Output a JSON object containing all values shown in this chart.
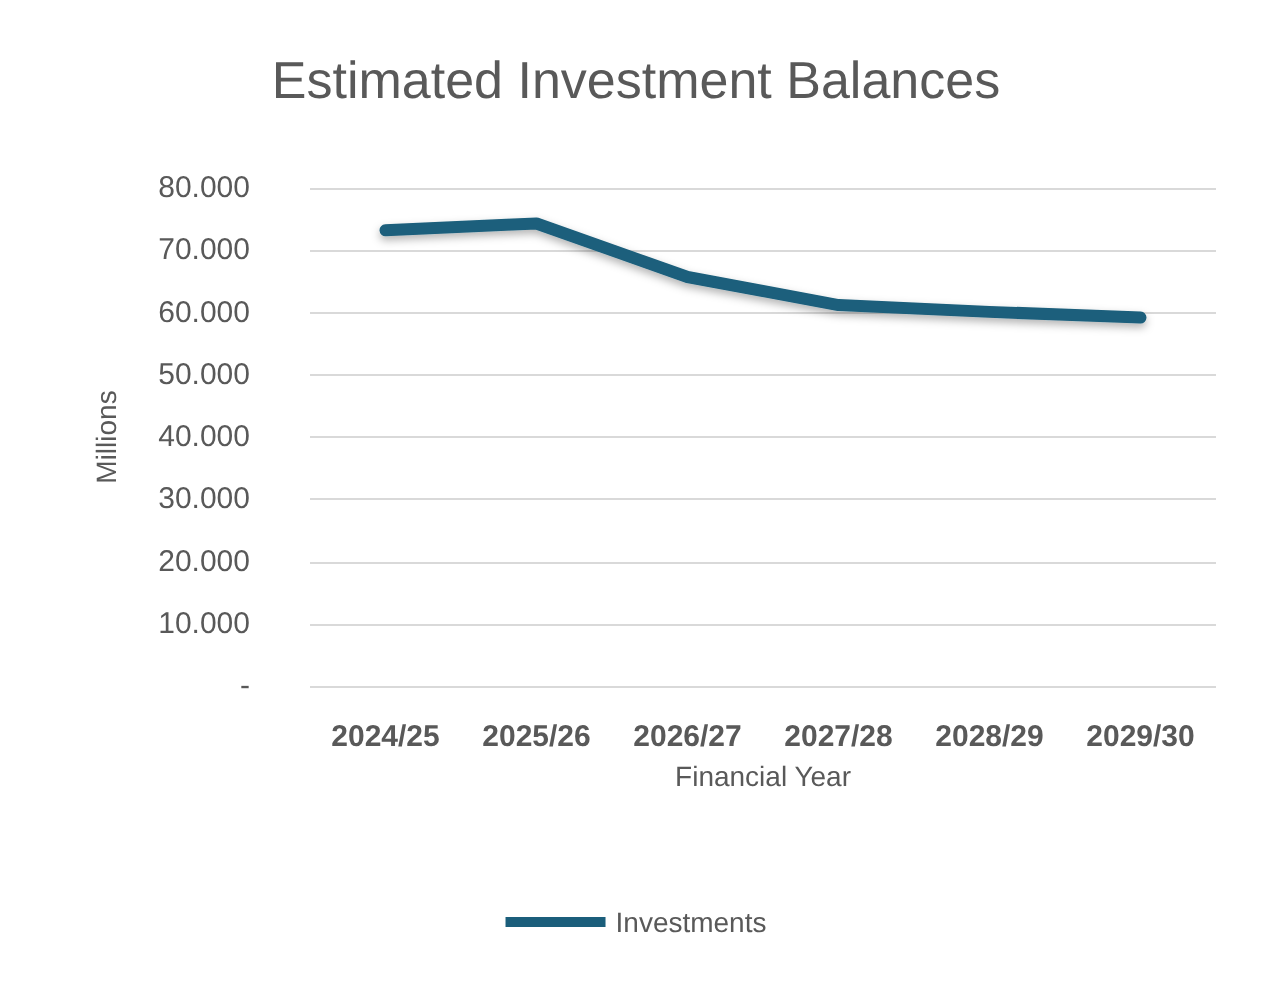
{
  "chart_data": {
    "type": "line",
    "title": "Estimated Investment Balances",
    "xlabel": "Financial Year",
    "ylabel": "Millions",
    "categories": [
      "2024/25",
      "2025/26",
      "2026/27",
      "2027/28",
      "2028/29",
      "2029/30"
    ],
    "series": [
      {
        "name": "Investments",
        "color": "#1b5e7b",
        "values": [
          73.2,
          74.3,
          65.7,
          61.2,
          60.1,
          59.2
        ]
      }
    ],
    "ylim": [
      0,
      80
    ],
    "yticks": [
      {
        "value": 0,
        "label": "-"
      },
      {
        "value": 10,
        "label": "10.000"
      },
      {
        "value": 20,
        "label": "20.000"
      },
      {
        "value": 30,
        "label": "30.000"
      },
      {
        "value": 40,
        "label": "40.000"
      },
      {
        "value": 50,
        "label": "50.000"
      },
      {
        "value": 60,
        "label": "60.000"
      },
      {
        "value": 70,
        "label": "70.000"
      },
      {
        "value": 80,
        "label": "80.000"
      }
    ],
    "grid": "y",
    "legend": "bottom",
    "marker": "none",
    "line_style": "solid"
  }
}
